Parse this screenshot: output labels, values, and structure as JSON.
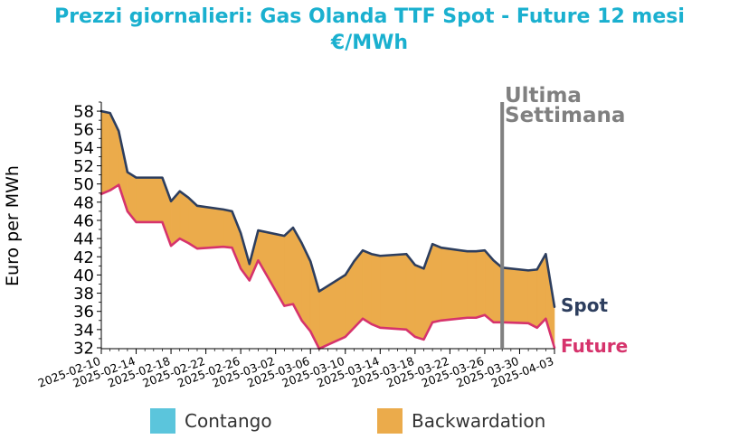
{
  "chart_data": {
    "type": "area",
    "title_line1": "Prezzi giornalieri: Gas Olanda TTF Spot - Future 12 mesi",
    "title_line2": "€/MWh",
    "ylabel": "Euro per MWh",
    "ylim": [
      32,
      59
    ],
    "yticks": [
      32,
      34,
      36,
      38,
      40,
      42,
      44,
      46,
      48,
      50,
      52,
      54,
      56,
      58
    ],
    "xticks": [
      "2025-02-10",
      "2025-02-14",
      "2025-02-18",
      "2025-02-22",
      "2025-02-26",
      "2025-03-02",
      "2025-03-06",
      "2025-03-10",
      "2025-03-14",
      "2025-03-18",
      "2025-03-22",
      "2025-03-26",
      "2025-03-30",
      "2025-04-03"
    ],
    "x": [
      "2025-02-10",
      "2025-02-11",
      "2025-02-12",
      "2025-02-13",
      "2025-02-14",
      "2025-02-17",
      "2025-02-18",
      "2025-02-19",
      "2025-02-20",
      "2025-02-21",
      "2025-02-24",
      "2025-02-25",
      "2025-02-26",
      "2025-02-27",
      "2025-02-28",
      "2025-03-03",
      "2025-03-04",
      "2025-03-05",
      "2025-03-06",
      "2025-03-07",
      "2025-03-10",
      "2025-03-11",
      "2025-03-12",
      "2025-03-13",
      "2025-03-14",
      "2025-03-17",
      "2025-03-18",
      "2025-03-19",
      "2025-03-20",
      "2025-03-21",
      "2025-03-24",
      "2025-03-25",
      "2025-03-26",
      "2025-03-27",
      "2025-03-28",
      "2025-03-31",
      "2025-04-01",
      "2025-04-02",
      "2025-04-03"
    ],
    "series": [
      {
        "name": "Spot",
        "color": "#2d3e5e",
        "values": [
          58.0,
          57.8,
          55.8,
          51.3,
          50.7,
          50.7,
          48.1,
          49.2,
          48.5,
          47.6,
          47.2,
          47.0,
          44.6,
          41.2,
          44.9,
          44.3,
          45.2,
          43.5,
          41.5,
          38.2,
          40.0,
          41.5,
          42.7,
          42.3,
          42.1,
          42.3,
          41.1,
          40.7,
          43.4,
          43.0,
          42.6,
          42.6,
          42.7,
          41.6,
          40.8,
          40.5,
          40.6,
          42.3,
          36.5
        ]
      },
      {
        "name": "Future",
        "color": "#d6336c",
        "values": [
          48.9,
          49.3,
          49.9,
          47.0,
          45.8,
          45.8,
          43.2,
          44.0,
          43.5,
          42.9,
          43.1,
          43.0,
          40.7,
          39.4,
          41.6,
          36.6,
          36.8,
          35.0,
          33.8,
          31.9,
          33.2,
          34.2,
          35.2,
          34.6,
          34.2,
          34.0,
          33.2,
          32.9,
          34.8,
          35.0,
          35.3,
          35.3,
          35.6,
          34.8,
          34.8,
          34.7,
          34.2,
          35.2,
          32.0
        ]
      }
    ],
    "end_labels": {
      "spot": "Spot",
      "future": "Future"
    },
    "marker": {
      "date": "2025-03-28",
      "label_line1": "Ultima",
      "label_line2": "Settimana",
      "color": "#808080"
    },
    "legend": {
      "contango": "Contango",
      "contango_color": "#5bc5dc",
      "backwardation": "Backwardation",
      "backwardation_color": "#ebab4b",
      "placement": "bottom"
    },
    "grid": false
  }
}
